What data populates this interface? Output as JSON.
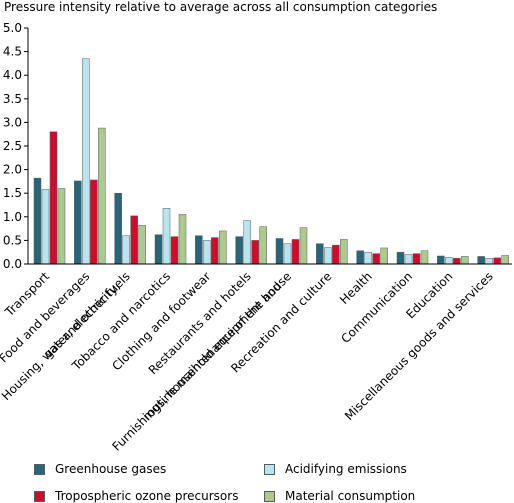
{
  "chart_data": {
    "type": "bar",
    "title": "Pressure intensity relative to average across all consumption categories",
    "ylim": [
      0,
      5.0
    ],
    "yticks": [
      "0.0",
      "0.5",
      "1.0",
      "1.5",
      "2.0",
      "2.5",
      "3.0",
      "3.5",
      "4.0",
      "4.5",
      "5.0"
    ],
    "grid": false,
    "legend_position": "bottom",
    "categories": [
      "Transport",
      "Food and beverages",
      "Housing, water, electricity, gas and other fuels",
      "Tobacco and narcotics",
      "Clothing and footwear",
      "Restaurants and hotels",
      "Furnishings, household equipment and routine maintenance of the house",
      "Recreation and culture",
      "Health",
      "Communication",
      "Education",
      "Miscellaneous goods and services"
    ],
    "category_label_lines": [
      [
        "Transport"
      ],
      [
        "Food and beverages"
      ],
      [
        "Housing, water, electricity,",
        "gas and other fuels"
      ],
      [
        "Tobacco and narcotics"
      ],
      [
        "Clothing and footwear"
      ],
      [
        "Restaurants and hotels"
      ],
      [
        "Furnishings, household equipment and",
        "routine maintenance of the house"
      ],
      [
        "Recreation and culture"
      ],
      [
        "Health"
      ],
      [
        "Communication"
      ],
      [
        "Education"
      ],
      [
        "Miscellaneous goods and services"
      ]
    ],
    "series": [
      {
        "name": "Greenhouse gases",
        "color": "#2a6478",
        "values": [
          1.82,
          1.76,
          1.5,
          0.62,
          0.6,
          0.58,
          0.54,
          0.43,
          0.28,
          0.25,
          0.17,
          0.16
        ]
      },
      {
        "name": "Acidifying emissions",
        "color": "#b9e3ef",
        "values": [
          1.58,
          4.35,
          0.6,
          1.18,
          0.5,
          0.92,
          0.43,
          0.35,
          0.25,
          0.2,
          0.14,
          0.12
        ]
      },
      {
        "name": "Tropospheric ozone precursors",
        "color": "#c8102e",
        "values": [
          2.8,
          1.78,
          1.02,
          0.58,
          0.56,
          0.5,
          0.52,
          0.4,
          0.22,
          0.22,
          0.12,
          0.13
        ]
      },
      {
        "name": "Material consumption",
        "color": "#aec98f",
        "values": [
          1.6,
          2.88,
          0.82,
          1.05,
          0.7,
          0.79,
          0.77,
          0.52,
          0.34,
          0.28,
          0.16,
          0.18
        ]
      }
    ]
  }
}
